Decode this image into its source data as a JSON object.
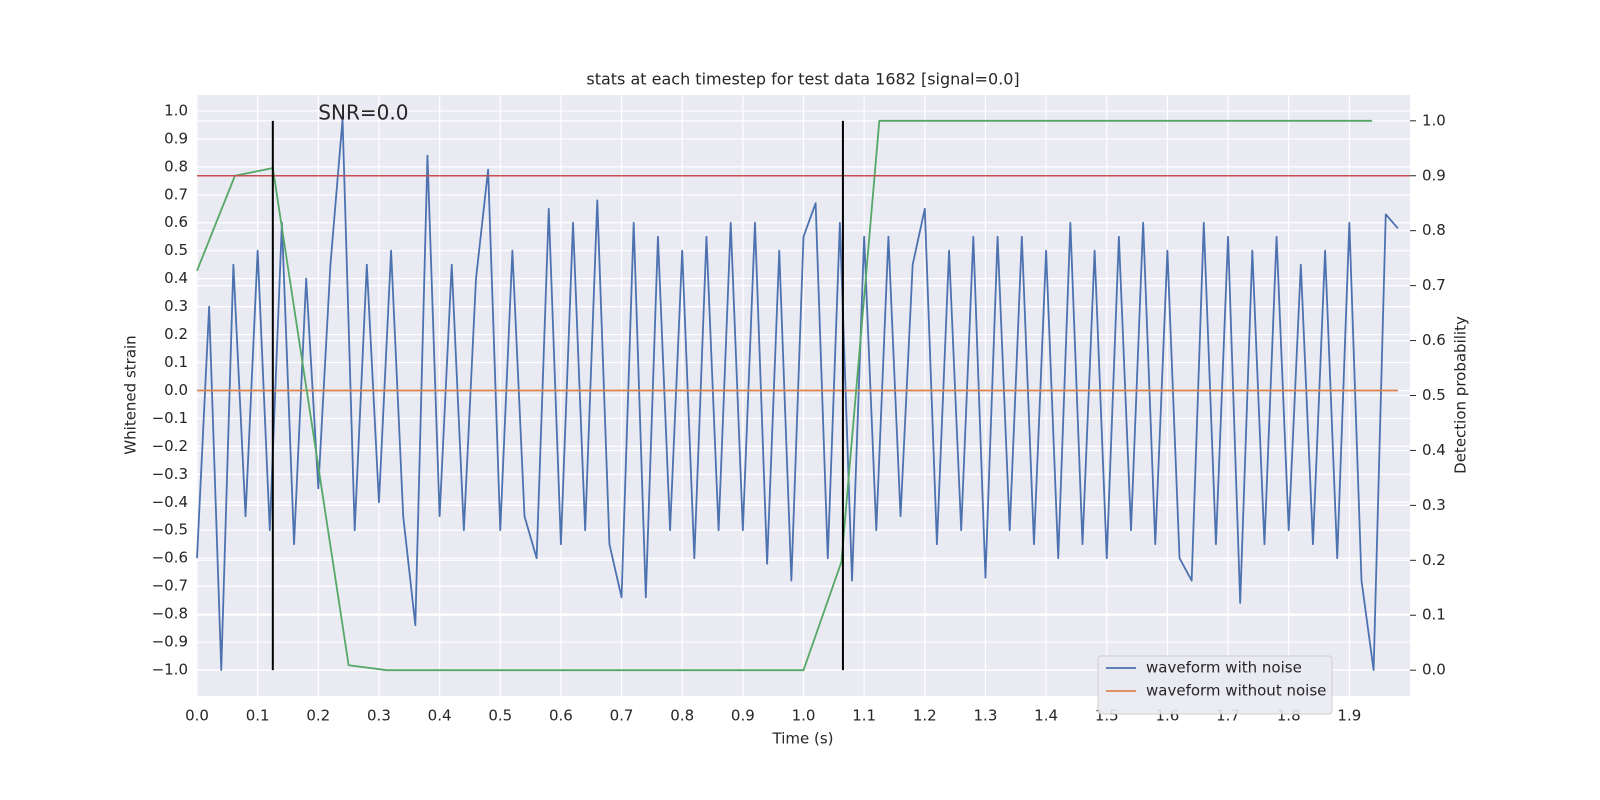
{
  "chart_data": {
    "type": "line",
    "title": "stats at each timestep for test data 1682 [signal=0.0]",
    "x_label": "Time (s)",
    "y_label": "Whitened strain",
    "y2_label": "Detection probability",
    "xlim": [
      0,
      2.0
    ],
    "ylim": [
      -1.093,
      1.057
    ],
    "y2lim": [
      -0.047,
      1.047
    ],
    "xticks": [
      {
        "value": 0,
        "label": "0.0"
      },
      0.1,
      0.2,
      0.3,
      0.4,
      0.5,
      0.6,
      0.7,
      0.8,
      0.9,
      {
        "value": 1,
        "label": "1.0"
      },
      1.1,
      1.2,
      1.3,
      1.4,
      1.5,
      1.6,
      1.7,
      1.8,
      1.9
    ],
    "yticks": [
      {
        "value": -1,
        "label": "−1.0"
      },
      {
        "value": -0.9,
        "label": "−0.9"
      },
      {
        "value": -0.8,
        "label": "−0.8"
      },
      {
        "value": -0.7,
        "label": "−0.7"
      },
      {
        "value": -0.6,
        "label": "−0.6"
      },
      {
        "value": -0.5,
        "label": "−0.5"
      },
      {
        "value": -0.4,
        "label": "−0.4"
      },
      {
        "value": -0.3,
        "label": "−0.3"
      },
      {
        "value": -0.2,
        "label": "−0.2"
      },
      {
        "value": -0.1,
        "label": "−0.1"
      },
      {
        "value": 0,
        "label": "0.0"
      },
      0.1,
      0.2,
      0.3,
      0.4,
      0.5,
      0.6,
      0.7,
      0.8,
      0.9,
      {
        "value": 1,
        "label": "1.0"
      }
    ],
    "y2ticks": [
      {
        "value": 0,
        "label": "0.0"
      },
      0.1,
      0.2,
      0.3,
      0.4,
      0.5,
      0.6,
      0.7,
      0.8,
      0.9,
      {
        "value": 1,
        "label": "1.0"
      }
    ],
    "grid": true,
    "legend_position": "lower right",
    "series": [
      {
        "name": "waveform with noise",
        "color": "#4c72b0",
        "x": [
          0.0,
          0.02,
          0.04,
          0.06,
          0.08,
          0.1,
          0.12,
          0.14,
          0.16,
          0.18,
          0.2,
          0.22,
          0.24,
          0.26,
          0.28,
          0.3,
          0.32,
          0.34,
          0.36,
          0.38,
          0.4,
          0.42,
          0.44,
          0.46,
          0.48,
          0.5,
          0.52,
          0.54,
          0.56,
          0.58,
          0.6,
          0.62,
          0.64,
          0.66,
          0.68,
          0.7,
          0.72,
          0.74,
          0.76,
          0.78,
          0.8,
          0.82,
          0.84,
          0.86,
          0.88,
          0.9,
          0.92,
          0.94,
          0.96,
          0.98,
          1.0,
          1.02,
          1.04,
          1.06,
          1.08,
          1.1,
          1.12,
          1.14,
          1.16,
          1.18,
          1.2,
          1.22,
          1.24,
          1.26,
          1.28,
          1.3,
          1.32,
          1.34,
          1.36,
          1.38,
          1.4,
          1.42,
          1.44,
          1.46,
          1.48,
          1.5,
          1.52,
          1.54,
          1.56,
          1.58,
          1.6,
          1.62,
          1.64,
          1.66,
          1.68,
          1.7,
          1.72,
          1.74,
          1.76,
          1.78,
          1.8,
          1.82,
          1.84,
          1.86,
          1.88,
          1.9,
          1.92,
          1.94,
          1.96,
          1.98
        ],
        "values": [
          -0.6,
          0.3,
          -1.0,
          0.45,
          -0.45,
          0.5,
          -0.5,
          0.6,
          -0.55,
          0.4,
          -0.35,
          0.45,
          0.97,
          -0.5,
          0.45,
          -0.4,
          0.5,
          -0.45,
          -0.84,
          0.84,
          -0.45,
          0.45,
          -0.5,
          0.4,
          0.79,
          -0.5,
          0.5,
          -0.45,
          -0.6,
          0.65,
          -0.55,
          0.6,
          -0.5,
          0.68,
          -0.55,
          -0.74,
          0.6,
          -0.74,
          0.55,
          -0.5,
          0.5,
          -0.6,
          0.55,
          -0.5,
          0.6,
          -0.5,
          0.6,
          -0.62,
          0.5,
          -0.68,
          0.55,
          0.67,
          -0.6,
          0.6,
          -0.68,
          0.55,
          -0.5,
          0.55,
          -0.45,
          0.45,
          0.65,
          -0.55,
          0.5,
          -0.5,
          0.55,
          -0.67,
          0.55,
          -0.5,
          0.55,
          -0.55,
          0.5,
          -0.6,
          0.6,
          -0.55,
          0.5,
          -0.6,
          0.55,
          -0.5,
          0.6,
          -0.55,
          0.5,
          -0.6,
          -0.68,
          0.6,
          -0.55,
          0.55,
          -0.76,
          0.5,
          -0.55,
          0.55,
          -0.5,
          0.45,
          -0.55,
          0.5,
          -0.6,
          0.6,
          -0.68,
          -1.0,
          0.63,
          0.58
        ]
      },
      {
        "name": "waveform without noise",
        "color": "#dd8452",
        "x": [
          0,
          1.98
        ],
        "values": [
          0,
          0
        ]
      },
      {
        "color": "#55a868",
        "axis": "y2",
        "x": [
          0,
          0.0625,
          0.125,
          0.25,
          0.3125,
          1.0,
          1.0625,
          1.125,
          1.9375
        ],
        "values": [
          0.727,
          0.9,
          0.914,
          0.009,
          0.0,
          0.0,
          0.197,
          1.0,
          1.0
        ]
      }
    ],
    "threshold": {
      "value": 0.9,
      "axis": "y2",
      "color": "#c44e52"
    },
    "vlines": {
      "x": [
        0.125,
        1.065
      ],
      "y2range": [
        0,
        1
      ],
      "color": "#000000"
    },
    "annotation": {
      "text": "SNR=0.0",
      "x": 0.2,
      "y": 1.0
    }
  }
}
